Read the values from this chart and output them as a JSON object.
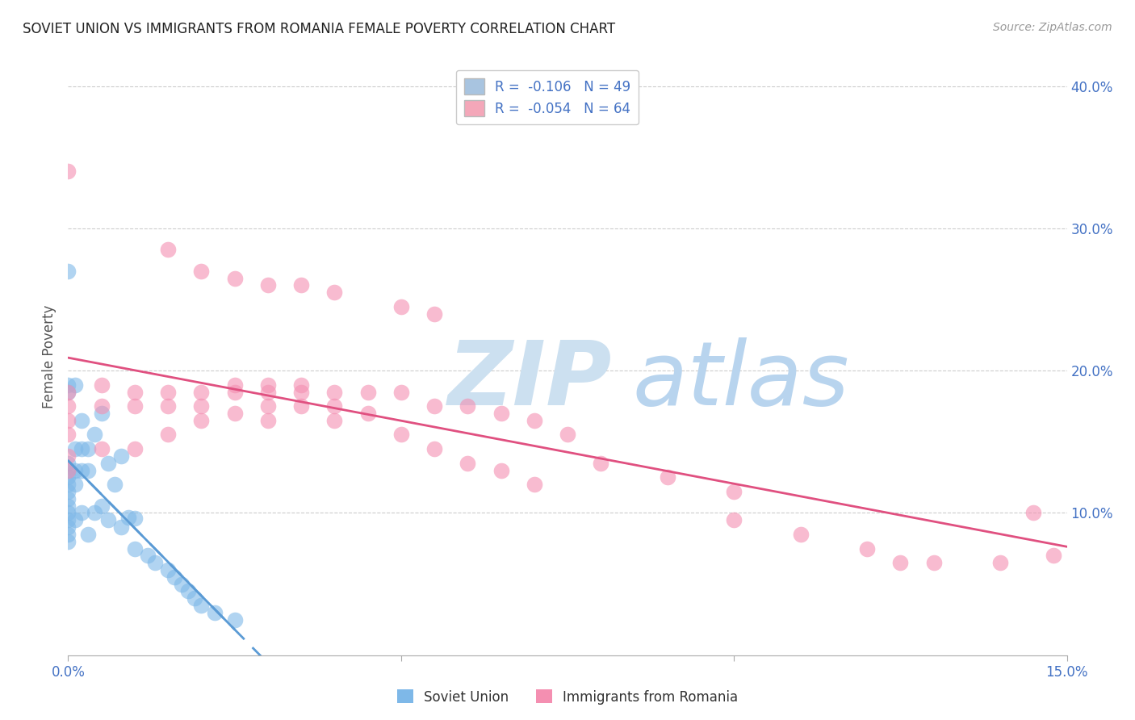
{
  "title": "SOVIET UNION VS IMMIGRANTS FROM ROMANIA FEMALE POVERTY CORRELATION CHART",
  "source": "Source: ZipAtlas.com",
  "ylabel": "Female Poverty",
  "xlim": [
    0.0,
    0.15
  ],
  "ylim": [
    0.0,
    0.42
  ],
  "scatter_color_soviet": "#7eb8e8",
  "scatter_color_romania": "#f48fb1",
  "trend_color_soviet": "#5b9bd5",
  "trend_color_romania": "#e05080",
  "legend_color1": "#a8c4e0",
  "legend_color2": "#f4a7b9",
  "legend_label1": "R =  -0.106   N = 49",
  "legend_label2": "R =  -0.054   N = 64",
  "soviet_x": [
    0.0,
    0.0,
    0.0,
    0.0,
    0.0,
    0.0,
    0.0,
    0.0,
    0.0,
    0.0,
    0.0,
    0.0,
    0.0,
    0.0,
    0.0,
    0.001,
    0.001,
    0.001,
    0.001,
    0.001,
    0.002,
    0.002,
    0.002,
    0.002,
    0.003,
    0.003,
    0.003,
    0.004,
    0.004,
    0.005,
    0.005,
    0.006,
    0.006,
    0.007,
    0.008,
    0.008,
    0.009,
    0.01,
    0.01,
    0.012,
    0.013,
    0.015,
    0.016,
    0.017,
    0.018,
    0.019,
    0.02,
    0.022,
    0.025
  ],
  "soviet_y": [
    0.27,
    0.19,
    0.185,
    0.135,
    0.13,
    0.125,
    0.12,
    0.115,
    0.11,
    0.105,
    0.1,
    0.095,
    0.09,
    0.085,
    0.08,
    0.19,
    0.145,
    0.13,
    0.12,
    0.095,
    0.165,
    0.145,
    0.13,
    0.1,
    0.145,
    0.13,
    0.085,
    0.155,
    0.1,
    0.17,
    0.105,
    0.135,
    0.095,
    0.12,
    0.14,
    0.09,
    0.097,
    0.096,
    0.075,
    0.07,
    0.065,
    0.06,
    0.055,
    0.05,
    0.045,
    0.04,
    0.035,
    0.03,
    0.025
  ],
  "romania_x": [
    0.0,
    0.0,
    0.0,
    0.0,
    0.0,
    0.0,
    0.0,
    0.005,
    0.005,
    0.005,
    0.01,
    0.01,
    0.01,
    0.015,
    0.015,
    0.015,
    0.02,
    0.02,
    0.02,
    0.025,
    0.025,
    0.025,
    0.03,
    0.03,
    0.03,
    0.03,
    0.035,
    0.035,
    0.035,
    0.04,
    0.04,
    0.04,
    0.045,
    0.045,
    0.05,
    0.05,
    0.055,
    0.055,
    0.06,
    0.06,
    0.065,
    0.065,
    0.07,
    0.07,
    0.075,
    0.08,
    0.09,
    0.1,
    0.1,
    0.11,
    0.12,
    0.125,
    0.13,
    0.14,
    0.145,
    0.148,
    0.015,
    0.02,
    0.025,
    0.03,
    0.035,
    0.04,
    0.05,
    0.055
  ],
  "romania_y": [
    0.34,
    0.185,
    0.175,
    0.165,
    0.155,
    0.14,
    0.13,
    0.19,
    0.175,
    0.145,
    0.185,
    0.175,
    0.145,
    0.185,
    0.175,
    0.155,
    0.185,
    0.175,
    0.165,
    0.19,
    0.185,
    0.17,
    0.19,
    0.185,
    0.175,
    0.165,
    0.19,
    0.185,
    0.175,
    0.185,
    0.175,
    0.165,
    0.185,
    0.17,
    0.185,
    0.155,
    0.175,
    0.145,
    0.175,
    0.135,
    0.17,
    0.13,
    0.165,
    0.12,
    0.155,
    0.135,
    0.125,
    0.115,
    0.095,
    0.085,
    0.075,
    0.065,
    0.065,
    0.065,
    0.1,
    0.07,
    0.285,
    0.27,
    0.265,
    0.26,
    0.26,
    0.255,
    0.245,
    0.24
  ],
  "watermark_zip_color": "#cce0f0",
  "watermark_atlas_color": "#b8d4ee"
}
